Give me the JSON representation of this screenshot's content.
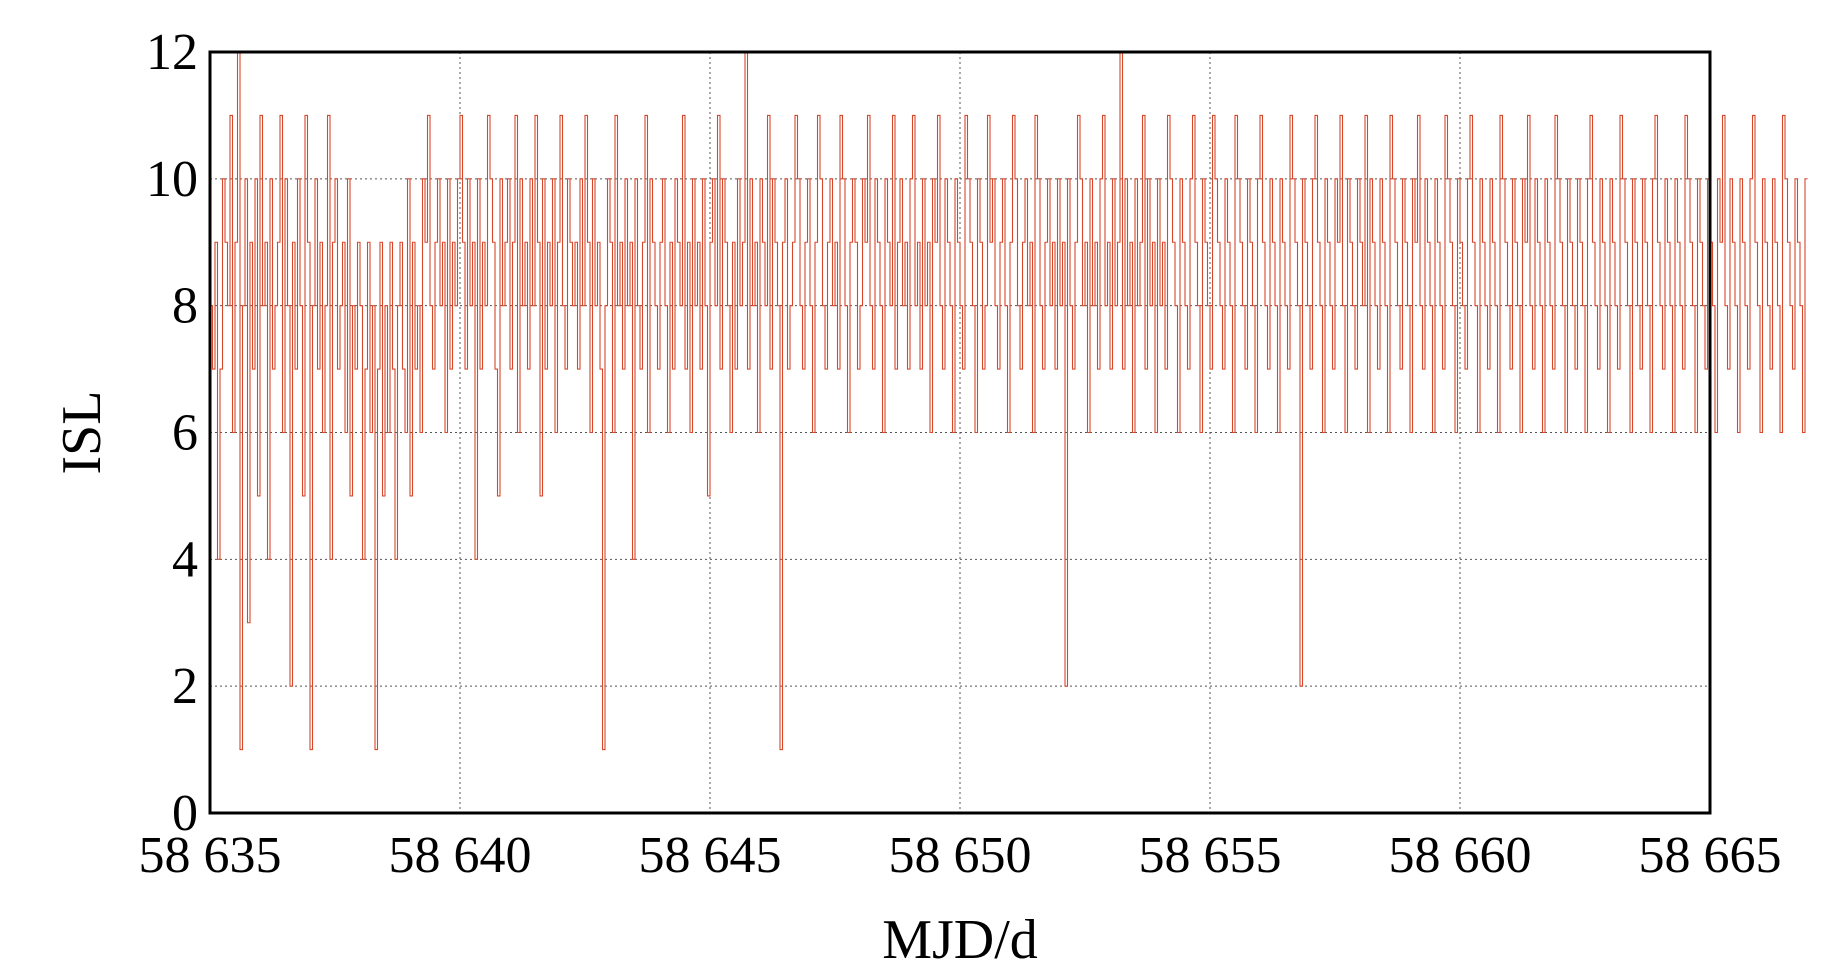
{
  "chart_data": {
    "type": "line",
    "xlabel": "MJD/d",
    "ylabel": "ISL",
    "xlim": [
      58635,
      58665
    ],
    "ylim": [
      0,
      12
    ],
    "x_ticks": [
      58635,
      58640,
      58645,
      58650,
      58655,
      58660,
      58665
    ],
    "x_tick_labels": [
      "58 635",
      "58 640",
      "58 645",
      "58 650",
      "58 655",
      "58 660",
      "58 665"
    ],
    "y_ticks": [
      0,
      2,
      4,
      6,
      8,
      10,
      12
    ],
    "y_tick_labels": [
      "0",
      "2",
      "4",
      "6",
      "8",
      "10",
      "12"
    ],
    "grid": true,
    "series": [
      {
        "color": "#d9472b",
        "step": true,
        "x_start": 58635,
        "x_step": 0.05,
        "values": [
          8,
          7,
          9,
          4,
          7,
          10,
          9,
          8,
          11,
          6,
          9,
          12,
          1,
          8,
          10,
          3,
          9,
          7,
          10,
          5,
          11,
          8,
          9,
          4,
          10,
          7,
          8,
          9,
          11,
          6,
          10,
          8,
          2,
          9,
          7,
          10,
          8,
          5,
          11,
          9,
          1,
          8,
          10,
          7,
          9,
          6,
          8,
          11,
          4,
          9,
          10,
          7,
          8,
          9,
          6,
          10,
          5,
          8,
          7,
          9,
          8,
          4,
          7,
          9,
          6,
          8,
          1,
          7,
          9,
          5,
          8,
          6,
          9,
          7,
          4,
          8,
          9,
          7,
          6,
          10,
          5,
          9,
          7,
          8,
          6,
          10,
          9,
          11,
          8,
          7,
          9,
          10,
          8,
          9,
          6,
          10,
          7,
          9,
          8,
          10,
          11,
          9,
          7,
          10,
          8,
          9,
          4,
          10,
          7,
          9,
          8,
          11,
          10,
          9,
          7,
          5,
          10,
          8,
          9,
          10,
          7,
          9,
          11,
          6,
          10,
          8,
          9,
          7,
          10,
          8,
          11,
          9,
          5,
          10,
          7,
          9,
          8,
          10,
          6,
          9,
          11,
          8,
          7,
          10,
          9,
          8,
          9,
          7,
          10,
          8,
          11,
          9,
          6,
          10,
          8,
          9,
          7,
          1,
          8,
          10,
          9,
          6,
          11,
          8,
          9,
          7,
          10,
          8,
          9,
          4,
          10,
          8,
          7,
          9,
          11,
          6,
          10,
          9,
          8,
          7,
          9,
          10,
          8,
          6,
          9,
          7,
          10,
          9,
          8,
          11,
          7,
          9,
          6,
          10,
          8,
          9,
          7,
          10,
          8,
          5,
          9,
          10,
          8,
          11,
          7,
          10,
          9,
          8,
          6,
          9,
          7,
          10,
          8,
          9,
          12,
          7,
          10,
          8,
          9,
          6,
          10,
          9,
          8,
          11,
          7,
          10,
          9,
          8,
          1,
          9,
          10,
          7,
          8,
          9,
          11,
          10,
          8,
          7,
          9,
          10,
          8,
          6,
          9,
          11,
          10,
          8,
          7,
          9,
          10,
          8,
          9,
          7,
          11,
          10,
          8,
          6,
          9,
          10,
          9,
          7,
          8,
          10,
          9,
          11,
          8,
          7,
          10,
          9,
          8,
          6,
          10,
          9,
          8,
          11,
          7,
          9,
          10,
          8,
          9,
          7,
          10,
          11,
          8,
          9,
          7,
          10,
          8,
          9,
          6,
          10,
          9,
          11,
          8,
          7,
          10,
          9,
          8,
          6,
          10,
          9,
          8,
          7,
          11,
          10,
          9,
          8,
          6,
          10,
          9,
          7,
          8,
          11,
          9,
          10,
          8,
          7,
          9,
          10,
          8,
          6,
          9,
          11,
          10,
          8,
          7,
          9,
          10,
          8,
          9,
          6,
          11,
          10,
          8,
          7,
          9,
          10,
          8,
          9,
          7,
          10,
          8,
          9,
          2,
          10,
          8,
          7,
          9,
          11,
          10,
          8,
          9,
          6,
          10,
          8,
          9,
          7,
          10,
          11,
          8,
          9,
          7,
          10,
          8,
          9,
          12,
          7,
          10,
          8,
          9,
          6,
          10,
          8,
          9,
          11,
          7,
          10,
          8,
          9,
          6,
          10,
          8,
          9,
          7,
          11,
          10,
          9,
          8,
          6,
          10,
          9,
          8,
          7,
          10,
          11,
          9,
          8,
          6,
          10,
          9,
          8,
          7,
          11,
          10,
          9,
          8,
          7,
          10,
          9,
          8,
          6,
          11,
          10,
          9,
          8,
          7,
          10,
          9,
          8,
          6,
          10,
          11,
          9,
          8,
          7,
          10,
          9,
          8,
          6,
          10,
          9,
          8,
          7,
          11,
          10,
          9,
          8,
          2,
          10,
          9,
          8,
          7,
          10,
          11,
          9,
          8,
          6,
          10,
          9,
          8,
          7,
          10,
          9,
          11,
          8,
          6,
          10,
          9,
          8,
          7,
          10,
          9,
          8,
          11,
          6,
          10,
          9,
          8,
          7,
          10,
          9,
          8,
          6,
          11,
          10,
          9,
          8,
          7,
          10,
          9,
          8,
          6,
          10,
          9,
          11,
          8,
          7,
          10,
          9,
          8,
          6,
          10,
          9,
          8,
          7,
          11,
          10,
          9,
          8,
          6,
          10,
          9,
          8,
          7,
          10,
          11,
          9,
          8,
          6,
          10,
          9,
          8,
          7,
          10,
          9,
          8,
          6,
          11,
          10,
          9,
          8,
          7,
          10,
          9,
          8,
          6,
          10,
          9,
          11,
          8,
          7,
          10,
          9,
          8,
          6,
          10,
          9,
          8,
          7,
          11,
          10,
          9,
          8,
          6,
          10,
          9,
          8,
          7,
          10,
          9,
          8,
          6,
          10,
          11,
          9,
          8,
          7,
          10,
          9,
          8,
          6,
          10,
          9,
          8,
          7,
          11,
          10,
          9,
          8,
          6,
          10,
          9,
          8,
          7,
          10,
          9,
          8,
          6,
          10,
          11,
          9,
          8,
          7,
          10,
          9,
          8,
          6,
          10,
          9,
          8,
          7,
          11,
          10,
          9,
          8,
          6,
          10,
          9,
          8,
          7,
          10,
          9,
          8,
          6,
          10,
          9,
          11,
          8,
          7,
          10,
          9,
          8,
          6,
          10,
          9,
          8,
          7,
          10,
          11,
          9,
          8,
          6,
          10,
          9,
          8,
          7,
          10,
          9,
          8,
          6,
          11,
          10,
          9,
          8,
          7,
          10,
          9,
          8,
          6,
          10
        ]
      }
    ]
  }
}
